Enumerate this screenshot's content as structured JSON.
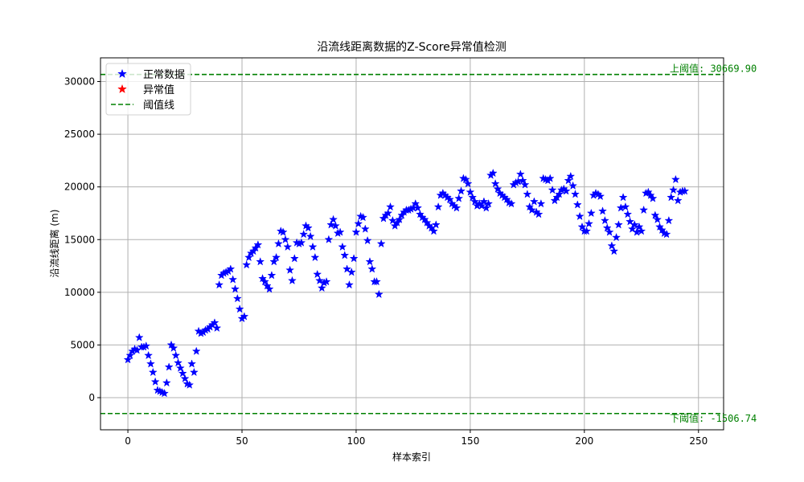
{
  "chart_data": {
    "type": "scatter",
    "title": "沿流线距离数据的Z-Score异常值检测",
    "xlabel": "样本索引",
    "ylabel": "沿流线距离 (m)",
    "xlim": [
      -12,
      261
    ],
    "ylim": [
      -3050,
      32250
    ],
    "x_ticks": [
      0,
      50,
      100,
      150,
      200,
      250
    ],
    "y_ticks": [
      0,
      5000,
      10000,
      15000,
      20000,
      25000,
      30000
    ],
    "grid": true,
    "legend_position": "upper left",
    "legend": [
      {
        "label": "正常数据",
        "marker": "star",
        "color": "#0000ff"
      },
      {
        "label": "异常值",
        "marker": "star",
        "color": "#ff0000"
      },
      {
        "label": "阈值线",
        "marker": "dashed-line",
        "color": "#008000"
      }
    ],
    "thresholds": {
      "upper": {
        "value": 30669.9,
        "label": "上阈值: 30669.90",
        "color": "#008000"
      },
      "lower": {
        "value": -1506.74,
        "label": "下阈值: -1506.74",
        "color": "#008000"
      }
    },
    "series": [
      {
        "name": "正常数据",
        "color": "#0000ff",
        "marker": "star",
        "x_start": 0,
        "values": [
          3600,
          4000,
          4400,
          4600,
          4500,
          5700,
          4800,
          4800,
          4900,
          4000,
          3200,
          2400,
          1500,
          700,
          600,
          500,
          400,
          1400,
          2900,
          5000,
          4700,
          4000,
          3300,
          2800,
          2300,
          1800,
          1300,
          1200,
          3200,
          2400,
          4400,
          6300,
          6100,
          6200,
          6400,
          6500,
          6700,
          6900,
          7100,
          6600,
          10700,
          11600,
          11800,
          11900,
          12000,
          12200,
          11200,
          10300,
          9400,
          8400,
          7500,
          7700,
          12600,
          13300,
          13700,
          13900,
          14200,
          14500,
          12900,
          11300,
          11000,
          10600,
          10300,
          11600,
          12900,
          13300,
          14600,
          15800,
          15700,
          15000,
          14300,
          12100,
          11100,
          13200,
          14700,
          14600,
          14700,
          15500,
          16300,
          16100,
          15300,
          14300,
          13300,
          11700,
          11100,
          10400,
          10900,
          11000,
          15000,
          16400,
          16900,
          16300,
          15600,
          15700,
          14300,
          13500,
          12200,
          10700,
          11900,
          13200,
          15700,
          16500,
          17200,
          17100,
          16000,
          14900,
          12900,
          12200,
          11000,
          11000,
          9800,
          14600,
          17000,
          17300,
          17500,
          18100,
          16800,
          16300,
          16600,
          16900,
          17300,
          17600,
          17800,
          17800,
          17900,
          18000,
          18400,
          18000,
          17400,
          17100,
          16900,
          16600,
          16300,
          16100,
          15800,
          16400,
          18100,
          19200,
          19400,
          19200,
          19000,
          18800,
          18400,
          18200,
          18000,
          18900,
          19600,
          20800,
          20700,
          20300,
          19500,
          19000,
          18600,
          18200,
          18400,
          18200,
          18600,
          18000,
          18400,
          21100,
          21300,
          20300,
          19800,
          19400,
          19200,
          19000,
          18800,
          18500,
          18400,
          20200,
          20400,
          20500,
          21200,
          20600,
          20200,
          19300,
          18100,
          17800,
          18600,
          17600,
          17400,
          18400,
          20800,
          20700,
          20600,
          20800,
          19700,
          18700,
          19000,
          19300,
          19700,
          19800,
          19600,
          20600,
          21000,
          20100,
          19300,
          18300,
          17200,
          16200,
          15800,
          15800,
          16500,
          17500,
          19200,
          19400,
          19300,
          19100,
          17700,
          16800,
          16100,
          15700,
          14400,
          13900,
          15200,
          16400,
          18000,
          19000,
          18100,
          17400,
          16700,
          16000,
          16400,
          15700,
          16200,
          15800,
          17800,
          19400,
          19500,
          19200,
          18900,
          17300,
          16900,
          16200,
          15900,
          15600,
          15500,
          16800,
          19000,
          19700,
          20700,
          18700,
          19500,
          19600,
          19600
        ],
        "count": 250
      },
      {
        "name": "异常值",
        "color": "#ff0000",
        "marker": "star",
        "values": []
      }
    ]
  }
}
